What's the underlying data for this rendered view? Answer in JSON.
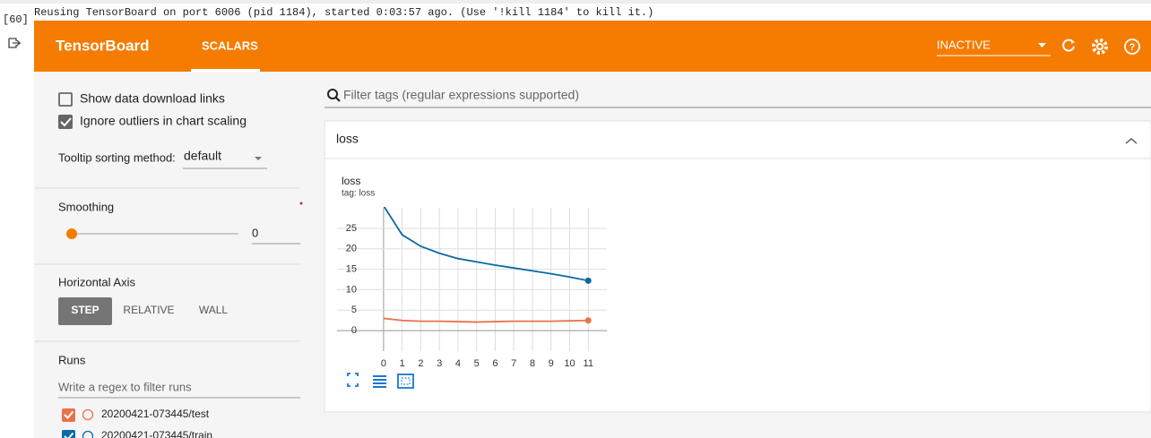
{
  "cell": {
    "prompt": "[60]",
    "output": "Reusing TensorBoard on port 6006 (pid 1184), started 0:03:57 ago. (Use '!kill 1184' to kill it.)"
  },
  "header": {
    "title": "TensorBoard",
    "tab": "SCALARS",
    "status": "INACTIVE"
  },
  "sidebar": {
    "show_download": "Show data download links",
    "ignore_outliers": "Ignore outliers in chart scaling",
    "tooltip_label": "Tooltip sorting method:",
    "tooltip_value": "default",
    "smoothing_label": "Smoothing",
    "smoothing_value": 0,
    "axis_label": "Horizontal Axis",
    "axis_options": [
      "STEP",
      "RELATIVE",
      "WALL"
    ],
    "runs_label": "Runs",
    "runs_filter": "Write a regex to filter runs"
  },
  "main": {
    "filter": "Filter tags (regular expressions supported)",
    "group": "loss"
  },
  "chart_data": {
    "type": "line",
    "title": "loss",
    "subtitle": "tag: loss",
    "x": [
      0,
      1,
      2,
      3,
      4,
      5,
      6,
      7,
      8,
      9,
      10,
      11
    ],
    "series": [
      {
        "name": "20200421-073445/test",
        "color": "#e8734a",
        "values": [
          3.0,
          2.5,
          2.3,
          2.3,
          2.2,
          2.1,
          2.2,
          2.3,
          2.3,
          2.3,
          2.4,
          2.5
        ]
      },
      {
        "name": "20200421-073445/train",
        "color": "#0a6aa6",
        "values": [
          30.5,
          23.4,
          20.6,
          18.9,
          17.6,
          16.8,
          16.0,
          15.3,
          14.6,
          13.9,
          13.1,
          12.2
        ]
      }
    ],
    "xlim": [
      -2.5,
      12
    ],
    "xticks": [
      0,
      1,
      2,
      3,
      4,
      5,
      6,
      7,
      8,
      9,
      10,
      11
    ],
    "ylim": [
      -5,
      30
    ],
    "yticks": [
      0,
      5,
      10,
      15,
      20,
      25
    ],
    "grid": true
  }
}
